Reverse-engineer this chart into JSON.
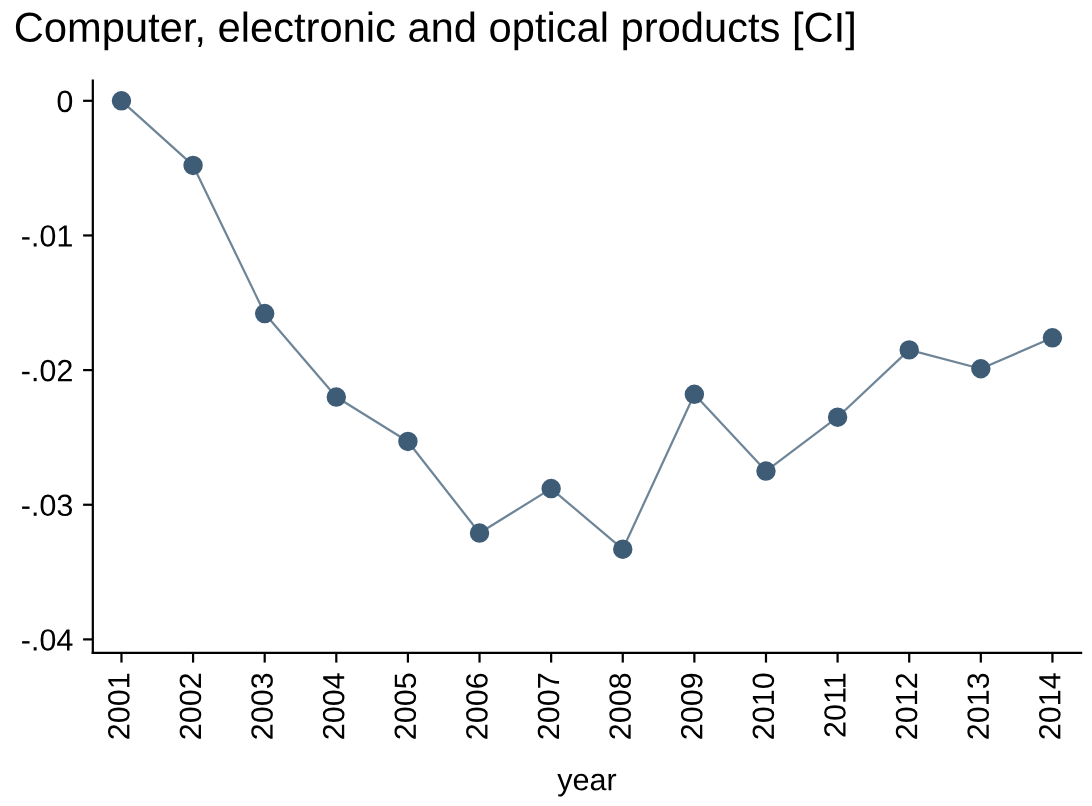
{
  "chart_data": {
    "type": "line",
    "title": "Computer, electronic and optical products [CI]",
    "xlabel": "year",
    "categories": [
      "2001",
      "2002",
      "2003",
      "2004",
      "2005",
      "2006",
      "2007",
      "2008",
      "2009",
      "2010",
      "2011",
      "2012",
      "2013",
      "2014"
    ],
    "series": [
      {
        "color": "#3e5c76",
        "values": [
          0,
          -0.0048,
          -0.0158,
          -0.022,
          -0.0253,
          -0.0321,
          -0.0288,
          -0.0333,
          -0.0218,
          -0.0275,
          -0.0235,
          -0.0185,
          -0.0199,
          -0.0176
        ]
      }
    ],
    "ylim": [
      -0.041,
      0.0015
    ],
    "yticks": [
      {
        "value": 0,
        "label": "0"
      },
      {
        "value": -0.01,
        "label": "-.01"
      },
      {
        "value": -0.02,
        "label": "-.02"
      },
      {
        "value": -0.03,
        "label": "-.03"
      },
      {
        "value": -0.04,
        "label": "-.04"
      }
    ],
    "marker": "circle",
    "line_style": "solid",
    "grid": false,
    "legend": false
  }
}
